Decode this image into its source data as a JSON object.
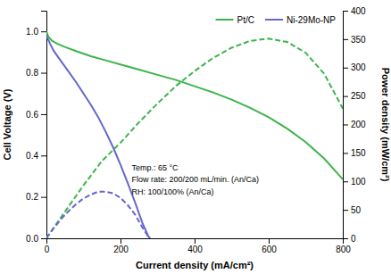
{
  "chart_data": {
    "type": "line",
    "x_label": "Current density (mA/cm²)",
    "y_label": "Cell Voltage (V)",
    "y2_label": "Power density (mW/cm²)",
    "xlim": [
      0,
      800
    ],
    "ylim": [
      0,
      1.1
    ],
    "y2lim": [
      0,
      400
    ],
    "xticks": [
      0,
      200,
      400,
      600,
      800
    ],
    "yticks": [
      {
        "value": 0.0,
        "label": "0.0"
      },
      0.2,
      0.4,
      0.6,
      0.8,
      {
        "value": 1.0,
        "label": "1.0"
      }
    ],
    "y2ticks": [
      0,
      50,
      100,
      150,
      200,
      250,
      300,
      350,
      400
    ],
    "grid": false,
    "legend": "upper right",
    "annotations": [
      {
        "text": "Temp.: 65 °C\nFlow rate: 200/200 mL/min. (An/Ca)\nRH: 100/100% (An/Ca)",
        "x": 230,
        "y": 0.2
      }
    ],
    "series": [
      {
        "name": "Pt/C",
        "color": "#3cb44b",
        "line_style": "solid",
        "x": [
          0,
          5,
          15,
          30,
          50,
          80,
          120,
          160,
          200,
          250,
          300,
          350,
          400,
          450,
          500,
          550,
          600,
          650,
          700,
          750,
          800
        ],
        "values": [
          1.0,
          0.975,
          0.955,
          0.94,
          0.925,
          0.905,
          0.88,
          0.86,
          0.84,
          0.815,
          0.79,
          0.765,
          0.735,
          0.705,
          0.67,
          0.63,
          0.585,
          0.53,
          0.465,
          0.385,
          0.285
        ]
      },
      {
        "color": "#3cb44b",
        "line_style": "dashed",
        "axis": "y2",
        "x": [
          0,
          10,
          30,
          60,
          100,
          150,
          200,
          250,
          300,
          350,
          400,
          450,
          500,
          550,
          600,
          650,
          700,
          750,
          800
        ],
        "values": [
          0,
          10,
          28,
          56,
          93,
          136,
          168,
          204,
          237,
          268,
          294,
          317,
          335,
          347,
          351,
          345,
          326,
          289,
          228
        ]
      },
      {
        "name": "Ni-29Mo-NP",
        "color": "#6666cc",
        "line_style": "solid",
        "x": [
          0,
          5,
          10,
          20,
          40,
          60,
          80,
          100,
          120,
          140,
          160,
          180,
          200,
          220,
          240,
          260,
          275,
          280
        ],
        "values": [
          0.98,
          0.96,
          0.94,
          0.905,
          0.855,
          0.805,
          0.755,
          0.7,
          0.645,
          0.585,
          0.515,
          0.44,
          0.355,
          0.265,
          0.17,
          0.07,
          0.01,
          0.0
        ]
      },
      {
        "color": "#6666cc",
        "line_style": "dashed",
        "axis": "y2",
        "x": [
          0,
          5,
          10,
          20,
          40,
          60,
          80,
          100,
          120,
          140,
          160,
          180,
          200,
          220,
          240,
          260,
          275
        ],
        "values": [
          0,
          5,
          9,
          18,
          34,
          48,
          60,
          70,
          77,
          82,
          82,
          79,
          71,
          58,
          41,
          18,
          3
        ]
      }
    ]
  }
}
